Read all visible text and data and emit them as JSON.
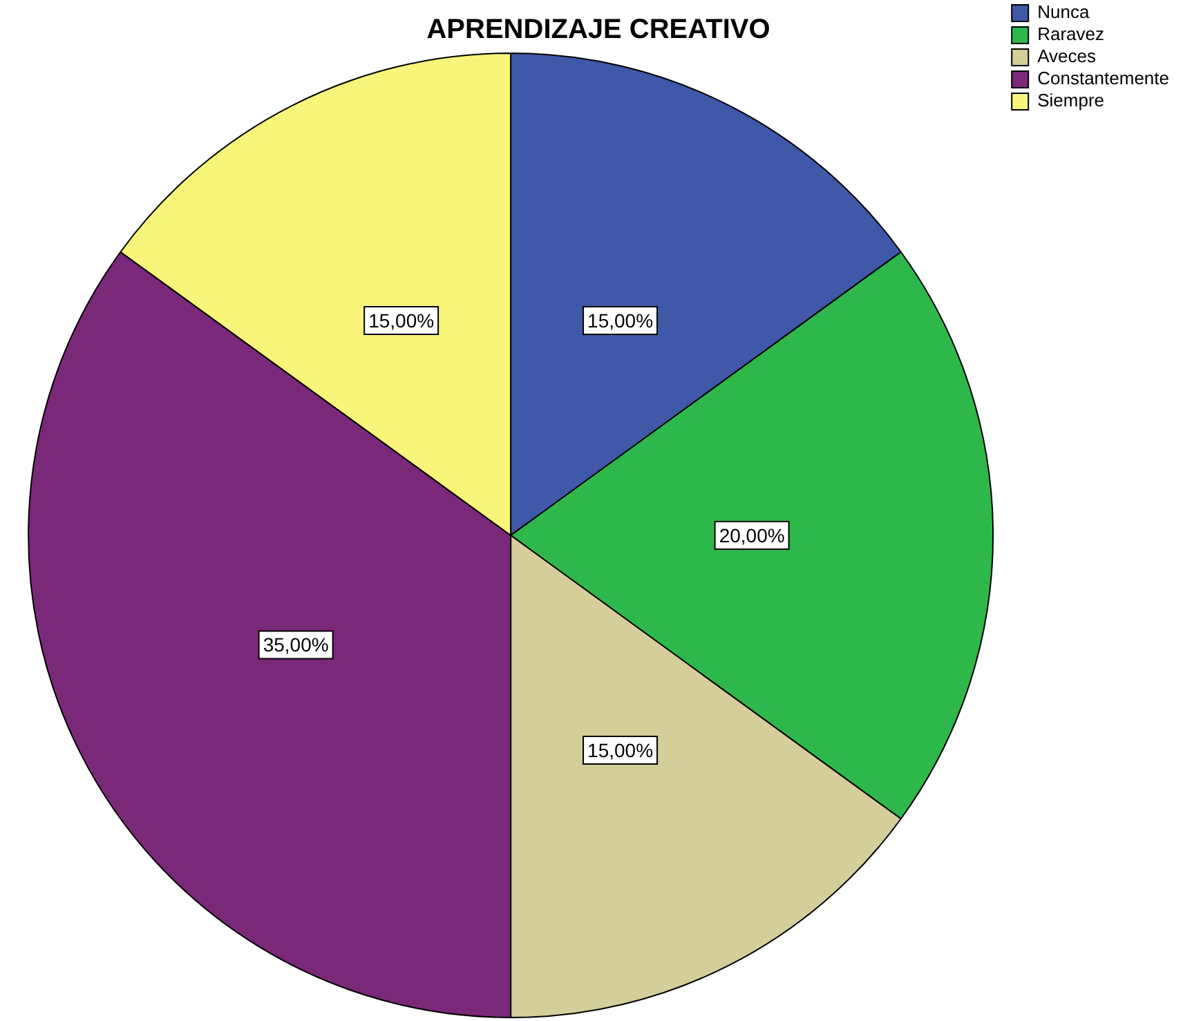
{
  "chart_data": {
    "type": "pie",
    "title": "APRENDIZAJE CREATIVO",
    "categories": [
      "Nunca",
      "Raravez",
      "Aveces",
      "Constantemente",
      "Siempre"
    ],
    "values": [
      15,
      20,
      15,
      35,
      15
    ],
    "colors": [
      "#3f58a8",
      "#2eb84b",
      "#d4ce9a",
      "#7a2878",
      "#f8f57a"
    ],
    "value_labels": [
      "15,00%",
      "20,00%",
      "15,00%",
      "35,00%",
      "15,00%"
    ],
    "legend": "top right"
  }
}
